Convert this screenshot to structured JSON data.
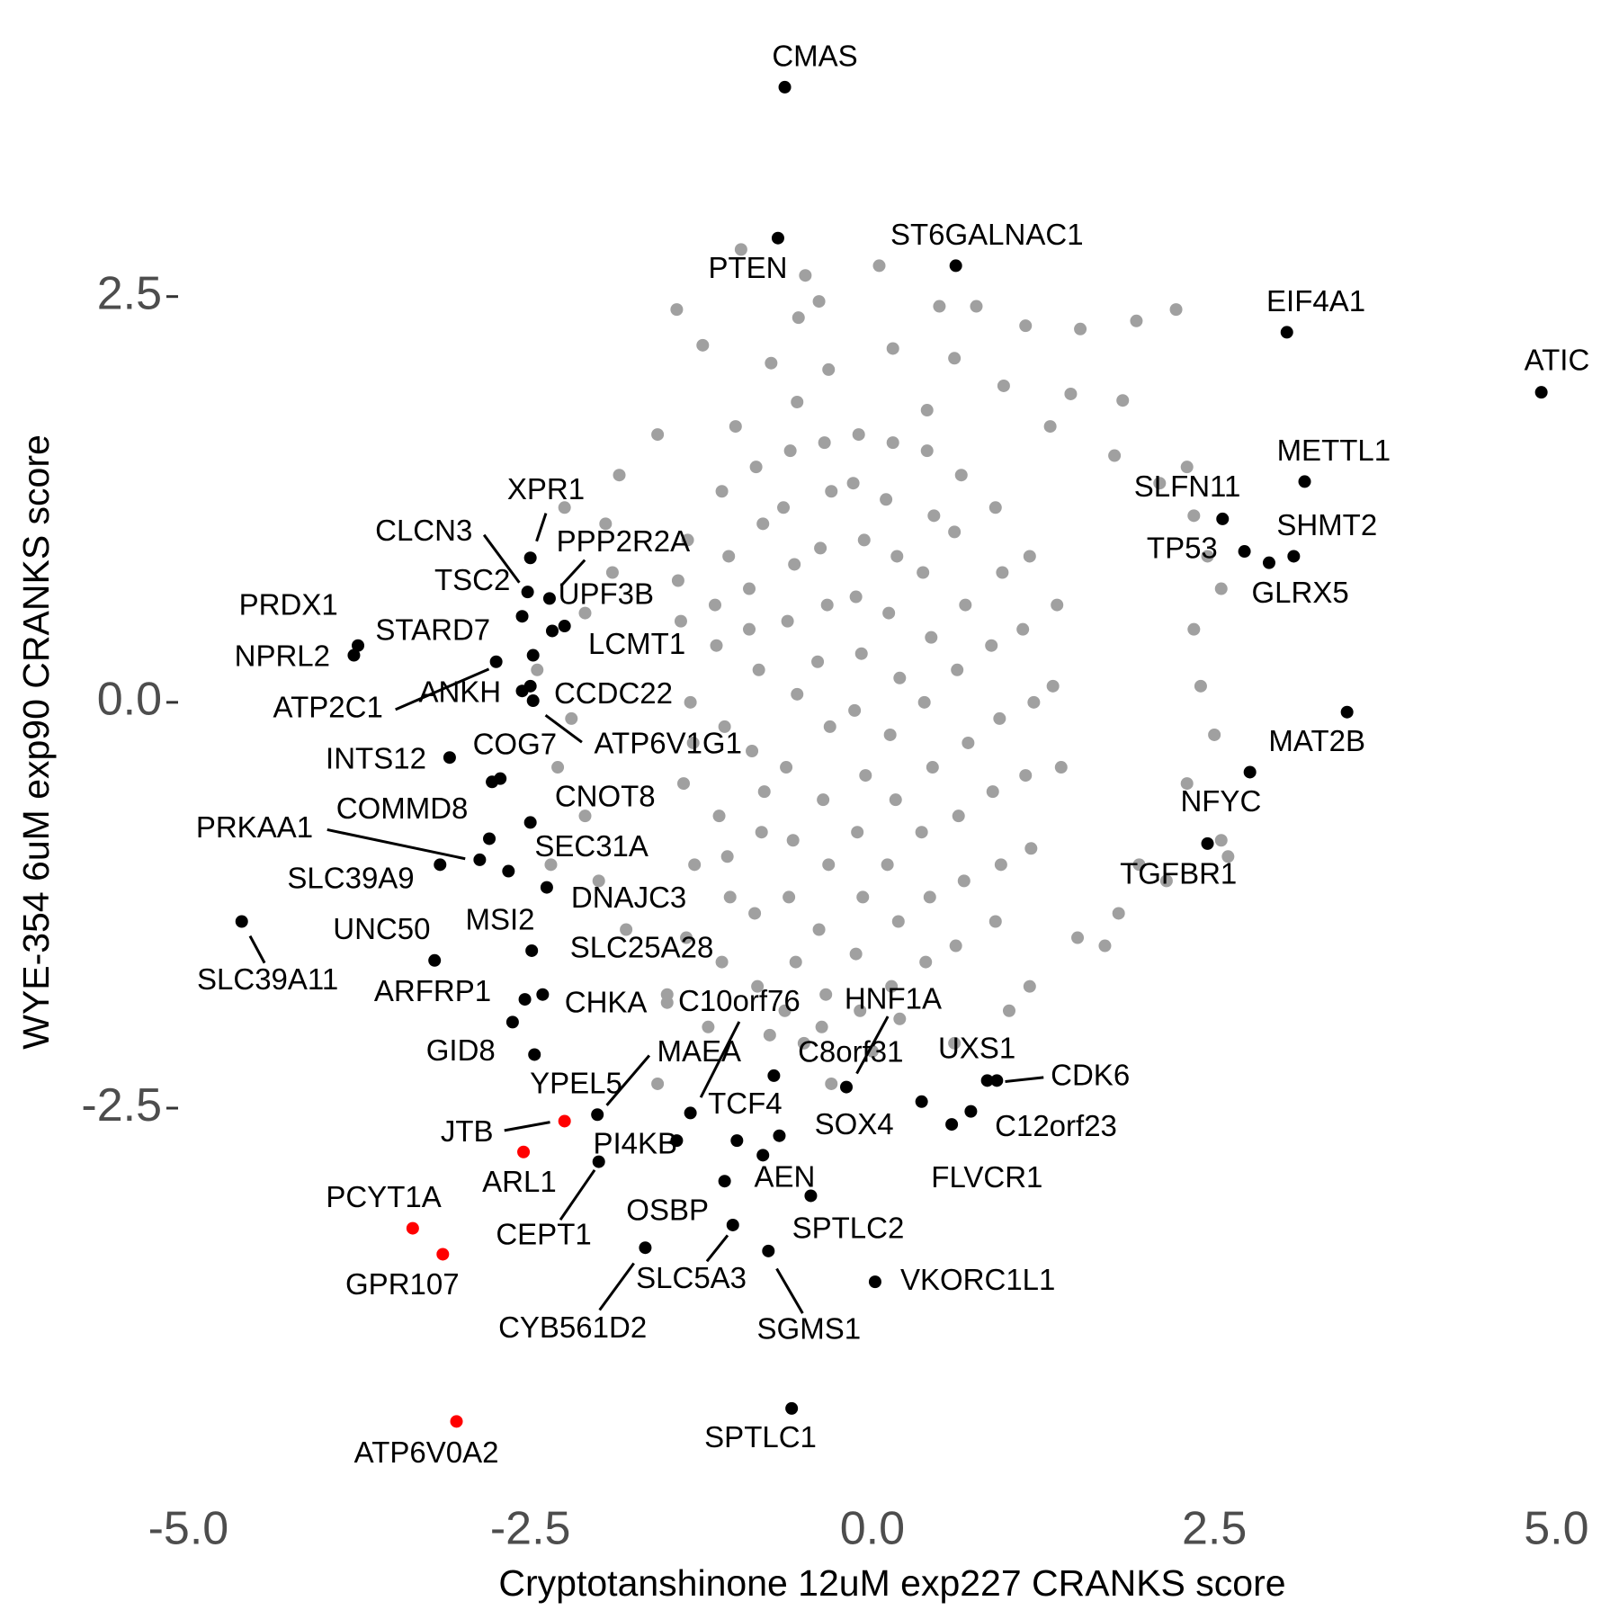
{
  "chart_data": {
    "type": "scatter",
    "x_label": "Cryptotanshinone 12uM exp227 CRANKS score",
    "y_label": "WYE-354 6uM exp90 CRANKS score",
    "xlim": [
      -5.2,
      5.3
    ],
    "ylim": [
      -4.6,
      4.0
    ],
    "xticks": [
      {
        "value": -5,
        "label": "-5.0"
      },
      -2.5,
      {
        "value": 0,
        "label": "0.0"
      },
      2.5,
      {
        "value": 5,
        "label": "5.0"
      }
    ],
    "yticks": [
      -2.5,
      {
        "value": 0,
        "label": "0.0"
      },
      2.5
    ],
    "grid": false,
    "background": {
      "color": "#a0a0a0",
      "points": [
        [
          -0.96,
          2.79
        ],
        [
          -0.49,
          2.63
        ],
        [
          0.05,
          2.69
        ],
        [
          -1.43,
          2.42
        ],
        [
          -0.54,
          2.37
        ],
        [
          -0.39,
          2.47
        ],
        [
          0.49,
          2.44
        ],
        [
          0.76,
          2.44
        ],
        [
          2.22,
          2.42
        ],
        [
          1.12,
          2.32
        ],
        [
          1.52,
          2.3
        ],
        [
          1.93,
          2.35
        ],
        [
          -1.24,
          2.2
        ],
        [
          -0.74,
          2.09
        ],
        [
          -0.32,
          2.05
        ],
        [
          0.15,
          2.18
        ],
        [
          0.6,
          2.12
        ],
        [
          1.45,
          1.9
        ],
        [
          0.96,
          1.95
        ],
        [
          1.83,
          1.86
        ],
        [
          -1.57,
          1.65
        ],
        [
          -1.0,
          1.7
        ],
        [
          -0.55,
          1.85
        ],
        [
          0.4,
          1.8
        ],
        [
          1.3,
          1.7
        ],
        [
          1.77,
          1.52
        ],
        [
          -1.85,
          1.4
        ],
        [
          2.1,
          1.35
        ],
        [
          2.3,
          1.45
        ],
        [
          -1.95,
          1.1
        ],
        [
          2.35,
          1.15
        ],
        [
          -2.25,
          1.2
        ],
        [
          -1.9,
          0.8
        ],
        [
          2.45,
          0.9
        ],
        [
          -2.1,
          0.55
        ],
        [
          2.55,
          0.7
        ],
        [
          -2.45,
          0.2
        ],
        [
          2.35,
          0.45
        ],
        [
          2.4,
          0.1
        ],
        [
          -2.2,
          -0.1
        ],
        [
          2.5,
          -0.2
        ],
        [
          2.3,
          -0.5
        ],
        [
          -2.3,
          -0.4
        ],
        [
          -2.1,
          -0.7
        ],
        [
          2.55,
          -0.85
        ],
        [
          2.6,
          -0.95
        ],
        [
          -2.0,
          -1.1
        ],
        [
          2.15,
          -1.1
        ],
        [
          1.8,
          -1.3
        ],
        [
          -1.8,
          -1.4
        ],
        [
          1.5,
          -1.45
        ],
        [
          1.7,
          -1.5
        ],
        [
          -1.5,
          -1.8
        ],
        [
          1.15,
          -1.75
        ],
        [
          -1.5,
          -1.85
        ],
        [
          -0.5,
          -2.1
        ],
        [
          0.0,
          -2.15
        ],
        [
          0.6,
          -2.1
        ],
        [
          1.0,
          -1.9
        ],
        [
          -0.3,
          -2.35
        ],
        [
          -1.57,
          -2.35
        ],
        [
          0.2,
          -1.95
        ],
        [
          1.95,
          -1.0
        ],
        [
          -2.35,
          -1.0
        ],
        [
          -1.2,
          -2.0
        ],
        [
          -0.75,
          -2.05
        ],
        [
          -1.35,
          1.0
        ],
        [
          -1.4,
          0.5
        ],
        [
          -1.33,
          0.0
        ],
        [
          -1.38,
          -0.5
        ],
        [
          -1.3,
          -1.0
        ],
        [
          -1.36,
          -1.45
        ],
        [
          -1.42,
          0.75
        ],
        [
          -1.31,
          -0.25
        ],
        [
          -1.1,
          1.3
        ],
        [
          -1.05,
          0.9
        ],
        [
          -1.14,
          0.35
        ],
        [
          -1.08,
          -0.15
        ],
        [
          -1.12,
          -0.7
        ],
        [
          -1.04,
          -1.2
        ],
        [
          -1.1,
          -1.6
        ],
        [
          -1.15,
          0.6
        ],
        [
          -1.06,
          -0.95
        ],
        [
          -0.85,
          1.45
        ],
        [
          -0.8,
          1.1
        ],
        [
          -0.9,
          0.7
        ],
        [
          -0.83,
          0.2
        ],
        [
          -0.88,
          -0.3
        ],
        [
          -0.81,
          -0.8
        ],
        [
          -0.86,
          -1.3
        ],
        [
          -0.84,
          -1.75
        ],
        [
          -0.9,
          0.45
        ],
        [
          -0.79,
          -0.55
        ],
        [
          -0.6,
          1.55
        ],
        [
          -0.65,
          1.2
        ],
        [
          -0.57,
          0.85
        ],
        [
          -0.62,
          0.5
        ],
        [
          -0.55,
          0.05
        ],
        [
          -0.63,
          -0.4
        ],
        [
          -0.58,
          -0.85
        ],
        [
          -0.61,
          -1.2
        ],
        [
          -0.56,
          -1.6
        ],
        [
          -0.64,
          -1.9
        ],
        [
          -0.35,
          1.6
        ],
        [
          -0.3,
          1.3
        ],
        [
          -0.38,
          0.95
        ],
        [
          -0.33,
          0.6
        ],
        [
          -0.4,
          0.25
        ],
        [
          -0.31,
          -0.15
        ],
        [
          -0.36,
          -0.6
        ],
        [
          -0.32,
          -1.0
        ],
        [
          -0.39,
          -1.4
        ],
        [
          -0.34,
          -1.8
        ],
        [
          -0.37,
          -2.0
        ],
        [
          -0.1,
          1.65
        ],
        [
          -0.14,
          1.35
        ],
        [
          -0.06,
          1.0
        ],
        [
          -0.12,
          0.65
        ],
        [
          -0.08,
          0.3
        ],
        [
          -0.13,
          -0.05
        ],
        [
          -0.05,
          -0.45
        ],
        [
          -0.11,
          -0.8
        ],
        [
          -0.07,
          -1.2
        ],
        [
          -0.12,
          -1.55
        ],
        [
          -0.09,
          -1.9
        ],
        [
          0.15,
          1.6
        ],
        [
          0.1,
          1.25
        ],
        [
          0.18,
          0.9
        ],
        [
          0.12,
          0.55
        ],
        [
          0.2,
          0.15
        ],
        [
          0.13,
          -0.2
        ],
        [
          0.17,
          -0.6
        ],
        [
          0.11,
          -1.0
        ],
        [
          0.19,
          -1.35
        ],
        [
          0.14,
          -1.75
        ],
        [
          0.4,
          1.55
        ],
        [
          0.45,
          1.15
        ],
        [
          0.37,
          0.8
        ],
        [
          0.43,
          0.4
        ],
        [
          0.38,
          0.0
        ],
        [
          0.44,
          -0.4
        ],
        [
          0.36,
          -0.8
        ],
        [
          0.42,
          -1.2
        ],
        [
          0.39,
          -1.6
        ],
        [
          0.65,
          1.4
        ],
        [
          0.6,
          1.05
        ],
        [
          0.68,
          0.6
        ],
        [
          0.62,
          0.2
        ],
        [
          0.7,
          -0.25
        ],
        [
          0.63,
          -0.7
        ],
        [
          0.67,
          -1.1
        ],
        [
          0.61,
          -1.5
        ],
        [
          0.9,
          1.2
        ],
        [
          0.95,
          0.8
        ],
        [
          0.87,
          0.35
        ],
        [
          0.93,
          -0.1
        ],
        [
          0.88,
          -0.55
        ],
        [
          0.94,
          -1.0
        ],
        [
          0.9,
          -1.35
        ],
        [
          1.15,
          0.9
        ],
        [
          1.1,
          0.45
        ],
        [
          1.18,
          0.0
        ],
        [
          1.12,
          -0.45
        ],
        [
          1.16,
          -0.9
        ],
        [
          1.35,
          0.6
        ],
        [
          1.32,
          0.1
        ],
        [
          1.38,
          -0.4
        ]
      ]
    },
    "points": [
      {
        "label": "CMAS",
        "x": -0.64,
        "y": 3.79,
        "color": "#000000"
      },
      {
        "label": "PTEN",
        "x": -0.69,
        "y": 2.86,
        "color": "#000000"
      },
      {
        "label": "ST6GALNAC1",
        "x": 0.61,
        "y": 2.69,
        "color": "#000000"
      },
      {
        "label": "EIF4A1",
        "x": 3.03,
        "y": 2.28,
        "color": "#000000"
      },
      {
        "label": "ATIC",
        "x": 4.89,
        "y": 1.91,
        "color": "#000000"
      },
      {
        "label": "METTL1",
        "x": 3.16,
        "y": 1.36,
        "color": "#000000"
      },
      {
        "label": "SLFN11",
        "x": 2.56,
        "y": 1.13,
        "color": "#000000"
      },
      {
        "label": "TP53",
        "x": 2.72,
        "y": 0.93,
        "color": "#000000"
      },
      {
        "label": "SHMT2",
        "x": 3.08,
        "y": 0.9,
        "color": "#000000"
      },
      {
        "label": "GLRX5",
        "x": 2.9,
        "y": 0.86,
        "color": "#000000"
      },
      {
        "label": "MAT2B",
        "x": 3.47,
        "y": -0.06,
        "color": "#000000"
      },
      {
        "label": "NFYC",
        "x": 2.76,
        "y": -0.43,
        "color": "#000000"
      },
      {
        "label": "TGFBR1",
        "x": 2.45,
        "y": -0.87,
        "color": "#000000"
      },
      {
        "label": "XPR1",
        "x": -2.5,
        "y": 0.89,
        "color": "#000000"
      },
      {
        "label": "CLCN3",
        "x": -2.52,
        "y": 0.68,
        "color": "#000000"
      },
      {
        "label": "PPP2R2A",
        "x": -2.36,
        "y": 0.64,
        "color": "#000000"
      },
      {
        "label": "TSC2",
        "x": -2.56,
        "y": 0.53,
        "color": "#000000"
      },
      {
        "label": "STARD7",
        "x": -2.34,
        "y": 0.44,
        "color": "#000000"
      },
      {
        "label": "UPF3B",
        "x": -2.25,
        "y": 0.47,
        "color": "#000000"
      },
      {
        "label": "LCMT1",
        "x": -2.48,
        "y": 0.29,
        "color": "#000000"
      },
      {
        "label": "PRDX1",
        "x": -3.76,
        "y": 0.35,
        "color": "#000000"
      },
      {
        "label": "NPRL2",
        "x": -3.79,
        "y": 0.29,
        "color": "#000000"
      },
      {
        "label": "ATP2C1",
        "x": -2.75,
        "y": 0.25,
        "color": "#000000"
      },
      {
        "label": "ANKH",
        "x": -2.56,
        "y": 0.07,
        "color": "#000000"
      },
      {
        "label": "CCDC22",
        "x": -2.5,
        "y": 0.1,
        "color": "#000000"
      },
      {
        "label": "ATP6V1G1",
        "x": -2.48,
        "y": 0.01,
        "color": "#000000"
      },
      {
        "label": "INTS12",
        "x": -3.09,
        "y": -0.34,
        "color": "#000000"
      },
      {
        "label": "COG7",
        "x": -2.72,
        "y": -0.47,
        "color": "#000000"
      },
      {
        "label": null,
        "x": -2.78,
        "y": -0.49,
        "color": "#000000"
      },
      {
        "label": "CNOT8",
        "x": -2.5,
        "y": -0.74,
        "color": "#000000"
      },
      {
        "label": "COMMD8",
        "x": -2.8,
        "y": -0.84,
        "color": "#000000"
      },
      {
        "label": "PRKAA1",
        "x": -2.87,
        "y": -0.97,
        "color": "#000000"
      },
      {
        "label": "SLC39A9",
        "x": -3.16,
        "y": -1.0,
        "color": "#000000"
      },
      {
        "label": "SEC31A",
        "x": -2.66,
        "y": -1.04,
        "color": "#000000"
      },
      {
        "label": "DNAJC3",
        "x": -2.38,
        "y": -1.14,
        "color": "#000000"
      },
      {
        "label": "SLC25A28",
        "x": -2.49,
        "y": -1.53,
        "color": "#000000"
      },
      {
        "label": "MSI2",
        "x": -2.41,
        "y": -1.8,
        "color": "#000000"
      },
      {
        "label": "CHKA",
        "x": -2.54,
        "y": -1.83,
        "color": "#000000"
      },
      {
        "label": "UNC50",
        "x": -3.2,
        "y": -1.59,
        "color": "#000000"
      },
      {
        "label": "ARFRP1",
        "x": -2.63,
        "y": -1.97,
        "color": "#000000"
      },
      {
        "label": "GID8",
        "x": -2.47,
        "y": -2.17,
        "color": "#000000"
      },
      {
        "label": "SLC39A11",
        "x": -4.61,
        "y": -1.35,
        "color": "#000000"
      },
      {
        "label": "YPEL5",
        "x": -1.43,
        "y": -2.7,
        "color": "#000000"
      },
      {
        "label": "PI4KB",
        "x": -0.99,
        "y": -2.7,
        "color": "#000000"
      },
      {
        "label": "TCF4",
        "x": -0.68,
        "y": -2.67,
        "color": "#000000"
      },
      {
        "label": "C10orf76",
        "x": -1.33,
        "y": -2.53,
        "color": "#000000"
      },
      {
        "label": "C8orf31",
        "x": -0.72,
        "y": -2.3,
        "color": "#000000"
      },
      {
        "label": "HNF1A",
        "x": -0.19,
        "y": -2.37,
        "color": "#000000"
      },
      {
        "label": "SOX4",
        "x": 0.36,
        "y": -2.46,
        "color": "#000000"
      },
      {
        "label": "UXS1",
        "x": 0.84,
        "y": -2.33,
        "color": "#000000"
      },
      {
        "label": "CDK6",
        "x": 0.91,
        "y": -2.33,
        "color": "#000000"
      },
      {
        "label": "C12orf23",
        "x": 0.72,
        "y": -2.52,
        "color": "#000000"
      },
      {
        "label": "FLVCR1",
        "x": 0.58,
        "y": -2.6,
        "color": "#000000"
      },
      {
        "label": "AEN",
        "x": -0.8,
        "y": -2.79,
        "color": "#000000"
      },
      {
        "label": "OSBP",
        "x": -1.08,
        "y": -2.95,
        "color": "#000000"
      },
      {
        "label": "MAEA",
        "x": -2.01,
        "y": -2.54,
        "color": "#000000"
      },
      {
        "label": "JTB",
        "x": -2.25,
        "y": -2.58,
        "color": "#ff0000"
      },
      {
        "label": "ARL1",
        "x": -2.55,
        "y": -2.77,
        "color": "#ff0000"
      },
      {
        "label": "CEPT1",
        "x": -2.0,
        "y": -2.83,
        "color": "#000000"
      },
      {
        "label": "SPTLC2",
        "x": -0.45,
        "y": -3.04,
        "color": "#000000"
      },
      {
        "label": "SLC5A3",
        "x": -1.02,
        "y": -3.22,
        "color": "#000000"
      },
      {
        "label": "CYB561D2",
        "x": -1.66,
        "y": -3.36,
        "color": "#000000"
      },
      {
        "label": "SGMS1",
        "x": -0.76,
        "y": -3.38,
        "color": "#000000"
      },
      {
        "label": "VKORC1L1",
        "x": 0.02,
        "y": -3.57,
        "color": "#000000"
      },
      {
        "label": "SPTLC1",
        "x": -0.59,
        "y": -4.35,
        "color": "#000000"
      },
      {
        "label": "PCYT1A",
        "x": -3.36,
        "y": -3.24,
        "color": "#ff0000"
      },
      {
        "label": "GPR107",
        "x": -3.14,
        "y": -3.4,
        "color": "#ff0000"
      },
      {
        "label": "ATP6V0A2",
        "x": -3.04,
        "y": -4.43,
        "color": "#ff0000"
      }
    ]
  }
}
